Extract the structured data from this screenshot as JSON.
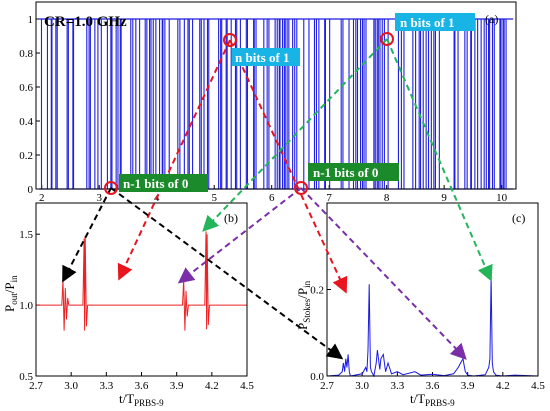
{
  "chart_data": [
    {
      "id": "a",
      "type": "line",
      "panel_label": "(a)",
      "annotation": "CR=1.0 GHz",
      "x_ticks": [
        "2",
        "3",
        "4",
        "5",
        "6",
        "7",
        "8",
        "9",
        "10"
      ],
      "y_ticks": [
        "0",
        "0.2",
        "0.4",
        "0.6",
        "0.8",
        "1"
      ],
      "xlim": [
        1.9,
        10.25
      ],
      "ylim": [
        0,
        1.1
      ],
      "series": [
        {
          "color": "#1f1fe0",
          "x": [
            1.95,
            10.2
          ],
          "y": [
            0,
            1
          ]
        }
      ]
    },
    {
      "id": "b",
      "type": "line",
      "panel_label": "(b)",
      "xlabel": "t/T",
      "xlabel_sub": "PRBS-9",
      "ylabel": "P",
      "ylabel_sub1": "out",
      "ylabel_mid": "/P",
      "ylabel_sub2": "in",
      "x_ticks": [
        "2.7",
        "3.0",
        "3.3",
        "3.6",
        "3.9",
        "4.2",
        "4.5"
      ],
      "y_ticks": [
        "0.5",
        "1.0",
        "1.5"
      ],
      "xlim": [
        2.7,
        4.5
      ],
      "ylim": [
        0.5,
        1.72
      ],
      "series": [
        {
          "color": "#ee2222",
          "x": [
            2.7,
            2.92,
            2.93,
            2.94,
            2.95,
            2.96,
            2.97,
            2.98,
            3.1,
            3.11,
            3.115,
            3.12,
            3.13,
            3.14,
            3.95,
            3.96,
            3.97,
            3.98,
            3.99,
            4.0,
            4.14,
            4.15,
            4.155,
            4.16,
            4.17,
            4.18,
            4.5
          ],
          "y": [
            1.0,
            1.0,
            1.18,
            0.82,
            1.12,
            0.9,
            1.05,
            1.0,
            1.0,
            1.47,
            0.82,
            1.49,
            0.85,
            1.0,
            1.0,
            1.18,
            0.82,
            1.1,
            0.92,
            1.0,
            1.0,
            1.52,
            0.83,
            1.5,
            0.86,
            1.0,
            1.0
          ]
        }
      ]
    },
    {
      "id": "c",
      "type": "line",
      "panel_label": "(c)",
      "xlabel": "t/T",
      "xlabel_sub": "PRBS-9",
      "ylabel": "P",
      "ylabel_sub1": "Stokes",
      "ylabel_mid": "/P",
      "ylabel_sub2": "in",
      "x_ticks": [
        "2.7",
        "3.0",
        "3.3",
        "3.6",
        "3.9",
        "4.2",
        "4.5"
      ],
      "y_ticks": [
        "0.0",
        "0.2"
      ],
      "xlim": [
        2.7,
        4.5
      ],
      "ylim": [
        0,
        0.4
      ],
      "series": [
        {
          "color": "#1a1ae6",
          "x": [
            2.7,
            2.8,
            2.83,
            2.84,
            2.85,
            2.86,
            2.87,
            2.88,
            2.89,
            2.9,
            3.0,
            3.03,
            3.04,
            3.05,
            3.06,
            3.07,
            3.08,
            3.1,
            3.12,
            3.13,
            3.15,
            3.16,
            3.18,
            3.2,
            3.22,
            3.25,
            3.3,
            3.35,
            3.45,
            3.5,
            3.6,
            3.7,
            3.78,
            3.82,
            3.84,
            3.86,
            3.87,
            3.88,
            3.9,
            3.95,
            4.05,
            4.08,
            4.09,
            4.1,
            4.11,
            4.12,
            4.14,
            4.2,
            4.3,
            4.5
          ],
          "y": [
            0.0,
            0.002,
            0.01,
            0.03,
            0.01,
            0.04,
            0.02,
            0.05,
            0.01,
            0.0,
            0.005,
            0.02,
            0.01,
            0.06,
            0.212,
            0.02,
            0.01,
            0.0,
            0.03,
            0.06,
            0.015,
            0.04,
            0.05,
            0.01,
            0.03,
            0.005,
            0.01,
            0.003,
            0.01,
            0.002,
            0.004,
            0.001,
            0.005,
            0.02,
            0.03,
            0.04,
            0.025,
            0.01,
            0.002,
            0.0,
            0.003,
            0.02,
            0.04,
            0.23,
            0.03,
            0.01,
            0.002,
            0.0,
            0.002,
            0.0
          ]
        }
      ]
    }
  ],
  "annotations": {
    "n_bits_of_1": "n bits of 1",
    "n_minus_1_bits_of_0": "n-1 bits of 0"
  },
  "colors": {
    "label_box_blue": "#19b4e6",
    "label_box_green": "#1a8a2a",
    "arrow_red": "#e8141e",
    "arrow_green": "#24b45a",
    "arrow_black": "#000000",
    "arrow_purple": "#7a2ea8",
    "marker_circle": "#e8141e"
  }
}
